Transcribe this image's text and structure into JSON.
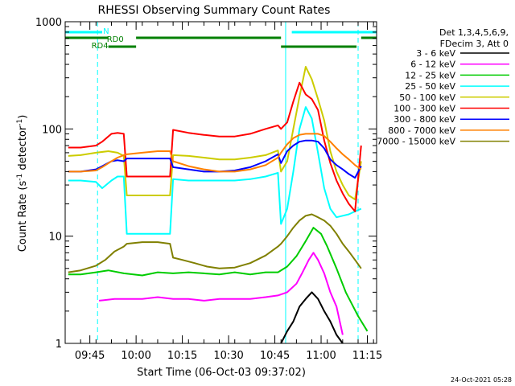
{
  "chart_data": {
    "type": "line",
    "title": "RHESSI Observing Summary Count Rates",
    "xlabel": "Start Time (06-Oct-03 09:37:02)",
    "ylabel_main": "Count Rate (s",
    "ylabel_sup1": "-1",
    "ylabel_mid": " detector",
    "ylabel_sup2": "-1",
    "ylabel_end": ")",
    "yscale": "log",
    "ylim": [
      1,
      1000
    ],
    "xlim_minutes": [
      0,
      101
    ],
    "xtick_labels": [
      "09:45",
      "10:00",
      "10:15",
      "10:30",
      "10:45",
      "11:00",
      "11:15"
    ],
    "xtick_minutes": [
      8,
      23,
      38,
      53,
      68,
      83,
      98
    ],
    "ytick_labels": [
      "1",
      "10",
      "100",
      "1000"
    ],
    "ytick_values": [
      1,
      10,
      100,
      1000
    ],
    "legend_header": [
      "Det 1,3,4,5,6,9,",
      "FDecim 3, Att 0"
    ],
    "legend_position": "right",
    "footer_date": "24-Oct-2021 05:28",
    "flags": [
      {
        "label": "N",
        "color": "#00ffff"
      },
      {
        "label": "RD0",
        "color": "#008000"
      },
      {
        "label": "RD4",
        "color": "#008000"
      }
    ],
    "series": [
      {
        "name": "3 - 6 keV",
        "color": "#000000",
        "points": [
          [
            70,
            1
          ],
          [
            72,
            1.3
          ],
          [
            74,
            1.6
          ],
          [
            76,
            2.2
          ],
          [
            78,
            2.6
          ],
          [
            80,
            3.0
          ],
          [
            82,
            2.6
          ],
          [
            84,
            2.0
          ],
          [
            86,
            1.6
          ],
          [
            88,
            1.2
          ],
          [
            90,
            1
          ]
        ]
      },
      {
        "name": "6 - 12 keV",
        "color": "#ff00ff",
        "points": [
          [
            11,
            2.5
          ],
          [
            16,
            2.6
          ],
          [
            20,
            2.6
          ],
          [
            25,
            2.6
          ],
          [
            30,
            2.7
          ],
          [
            35,
            2.6
          ],
          [
            40,
            2.6
          ],
          [
            45,
            2.5
          ],
          [
            50,
            2.6
          ],
          [
            55,
            2.6
          ],
          [
            60,
            2.6
          ],
          [
            65,
            2.7
          ],
          [
            69,
            2.8
          ],
          [
            72,
            3.0
          ],
          [
            75,
            3.6
          ],
          [
            77,
            4.6
          ],
          [
            79,
            6.0
          ],
          [
            80.5,
            7.0
          ],
          [
            82,
            6.0
          ],
          [
            84,
            4.5
          ],
          [
            86,
            3.0
          ],
          [
            88,
            2.2
          ],
          [
            90,
            1.2
          ]
        ]
      },
      {
        "name": "12 - 25 keV",
        "color": "#00cc00",
        "points": [
          [
            1,
            4.4
          ],
          [
            5,
            4.4
          ],
          [
            10,
            4.6
          ],
          [
            14,
            4.8
          ],
          [
            19,
            4.5
          ],
          [
            25,
            4.3
          ],
          [
            30,
            4.6
          ],
          [
            35,
            4.5
          ],
          [
            40,
            4.6
          ],
          [
            45,
            4.5
          ],
          [
            50,
            4.4
          ],
          [
            55,
            4.6
          ],
          [
            60,
            4.4
          ],
          [
            65,
            4.6
          ],
          [
            69,
            4.6
          ],
          [
            72,
            5.2
          ],
          [
            75,
            6.5
          ],
          [
            78,
            9.0
          ],
          [
            80.5,
            12
          ],
          [
            83,
            10.5
          ],
          [
            85,
            8
          ],
          [
            88,
            5
          ],
          [
            91,
            3
          ],
          [
            95,
            1.8
          ],
          [
            98,
            1.3
          ]
        ]
      },
      {
        "name": "25 - 50 keV",
        "color": "#00ffff",
        "points": [
          [
            1,
            33
          ],
          [
            5,
            33
          ],
          [
            10,
            32
          ],
          [
            12,
            28
          ],
          [
            15,
            33
          ],
          [
            17,
            36
          ],
          [
            19,
            36
          ],
          [
            20,
            10.5
          ],
          [
            25,
            10.5
          ],
          [
            30,
            10.5
          ],
          [
            34,
            10.5
          ],
          [
            35,
            34
          ],
          [
            40,
            33
          ],
          [
            45,
            33
          ],
          [
            50,
            33
          ],
          [
            55,
            33
          ],
          [
            60,
            34
          ],
          [
            65,
            36
          ],
          [
            69,
            39
          ],
          [
            70,
            13
          ],
          [
            72,
            18
          ],
          [
            74,
            40
          ],
          [
            76,
            100
          ],
          [
            78,
            160
          ],
          [
            80,
            125
          ],
          [
            82,
            60
          ],
          [
            84,
            28
          ],
          [
            86,
            18
          ],
          [
            88,
            15
          ],
          [
            90,
            15.5
          ],
          [
            92,
            16
          ],
          [
            94,
            17
          ],
          [
            96,
            18
          ]
        ]
      },
      {
        "name": "50 - 100 keV",
        "color": "#cccc00",
        "points": [
          [
            1,
            56
          ],
          [
            5,
            57
          ],
          [
            10,
            60
          ],
          [
            14,
            62
          ],
          [
            17,
            60
          ],
          [
            19,
            56
          ],
          [
            20,
            24
          ],
          [
            25,
            24
          ],
          [
            30,
            24
          ],
          [
            34,
            24
          ],
          [
            35,
            57
          ],
          [
            40,
            56
          ],
          [
            45,
            54
          ],
          [
            50,
            52
          ],
          [
            55,
            52
          ],
          [
            60,
            54
          ],
          [
            65,
            57
          ],
          [
            69,
            63
          ],
          [
            70,
            40
          ],
          [
            72,
            50
          ],
          [
            74,
            100
          ],
          [
            76,
            200
          ],
          [
            78,
            380
          ],
          [
            80,
            290
          ],
          [
            82,
            190
          ],
          [
            84,
            120
          ],
          [
            86,
            62
          ],
          [
            88,
            40
          ],
          [
            90,
            30
          ],
          [
            92,
            24
          ],
          [
            94,
            22
          ],
          [
            96,
            50
          ]
        ]
      },
      {
        "name": "100 - 300 keV",
        "color": "#ff0000",
        "points": [
          [
            1,
            67
          ],
          [
            5,
            67
          ],
          [
            10,
            70
          ],
          [
            12,
            76
          ],
          [
            15,
            90
          ],
          [
            17,
            92
          ],
          [
            19,
            90
          ],
          [
            20,
            36
          ],
          [
            25,
            36
          ],
          [
            30,
            36
          ],
          [
            34,
            36
          ],
          [
            35,
            98
          ],
          [
            40,
            92
          ],
          [
            45,
            88
          ],
          [
            50,
            85
          ],
          [
            55,
            85
          ],
          [
            60,
            90
          ],
          [
            65,
            100
          ],
          [
            69,
            108
          ],
          [
            70,
            100
          ],
          [
            72,
            115
          ],
          [
            74,
            180
          ],
          [
            76,
            270
          ],
          [
            78,
            210
          ],
          [
            80,
            190
          ],
          [
            82,
            150
          ],
          [
            84,
            78
          ],
          [
            86,
            48
          ],
          [
            88,
            33
          ],
          [
            90,
            25
          ],
          [
            92,
            20
          ],
          [
            94,
            17
          ],
          [
            96,
            70
          ]
        ]
      },
      {
        "name": "300 - 800 keV",
        "color": "#0000ff",
        "points": [
          [
            1,
            40
          ],
          [
            5,
            40
          ],
          [
            10,
            42
          ],
          [
            12,
            45
          ],
          [
            15,
            50
          ],
          [
            17,
            51
          ],
          [
            19,
            50
          ],
          [
            20,
            53
          ],
          [
            25,
            53
          ],
          [
            30,
            53
          ],
          [
            34,
            53
          ],
          [
            35,
            44
          ],
          [
            40,
            42
          ],
          [
            45,
            40
          ],
          [
            50,
            40
          ],
          [
            55,
            41
          ],
          [
            60,
            44
          ],
          [
            65,
            50
          ],
          [
            69,
            58
          ],
          [
            70,
            48
          ],
          [
            72,
            62
          ],
          [
            74,
            70
          ],
          [
            76,
            76
          ],
          [
            78,
            78
          ],
          [
            80,
            78
          ],
          [
            82,
            76
          ],
          [
            84,
            66
          ],
          [
            86,
            52
          ],
          [
            88,
            46
          ],
          [
            90,
            42
          ],
          [
            92,
            38
          ],
          [
            94,
            35
          ],
          [
            96,
            45
          ]
        ]
      },
      {
        "name": "800 - 7000 keV",
        "color": "#ff8000",
        "points": [
          [
            1,
            40
          ],
          [
            5,
            40
          ],
          [
            10,
            41
          ],
          [
            12,
            44
          ],
          [
            15,
            50
          ],
          [
            17,
            54
          ],
          [
            19,
            57
          ],
          [
            20,
            58
          ],
          [
            25,
            60
          ],
          [
            30,
            62
          ],
          [
            34,
            62
          ],
          [
            35,
            50
          ],
          [
            40,
            45
          ],
          [
            45,
            42
          ],
          [
            50,
            40
          ],
          [
            55,
            40
          ],
          [
            60,
            42
          ],
          [
            65,
            46
          ],
          [
            69,
            54
          ],
          [
            70,
            60
          ],
          [
            72,
            72
          ],
          [
            74,
            82
          ],
          [
            76,
            88
          ],
          [
            78,
            90
          ],
          [
            80,
            90
          ],
          [
            82,
            90
          ],
          [
            84,
            86
          ],
          [
            86,
            76
          ],
          [
            88,
            66
          ],
          [
            90,
            58
          ],
          [
            92,
            52
          ],
          [
            94,
            46
          ],
          [
            96,
            42
          ]
        ]
      },
      {
        "name": "7000 - 15000 keV",
        "color": "#808000",
        "points": [
          [
            1,
            4.6
          ],
          [
            5,
            4.8
          ],
          [
            10,
            5.3
          ],
          [
            13,
            6.0
          ],
          [
            16,
            7.2
          ],
          [
            19,
            8.0
          ],
          [
            20,
            8.5
          ],
          [
            25,
            8.8
          ],
          [
            30,
            8.8
          ],
          [
            34,
            8.5
          ],
          [
            35,
            6.3
          ],
          [
            38,
            6.0
          ],
          [
            42,
            5.6
          ],
          [
            46,
            5.2
          ],
          [
            50,
            5.0
          ],
          [
            55,
            5.1
          ],
          [
            60,
            5.6
          ],
          [
            65,
            6.6
          ],
          [
            69,
            8.0
          ],
          [
            70,
            8.5
          ],
          [
            72,
            10
          ],
          [
            74,
            12
          ],
          [
            76,
            14
          ],
          [
            78,
            15.5
          ],
          [
            80,
            16
          ],
          [
            82,
            15
          ],
          [
            84,
            14
          ],
          [
            86,
            12.5
          ],
          [
            88,
            10.5
          ],
          [
            90,
            8.5
          ],
          [
            92,
            7.2
          ],
          [
            94,
            6
          ],
          [
            96,
            5
          ]
        ]
      }
    ]
  }
}
